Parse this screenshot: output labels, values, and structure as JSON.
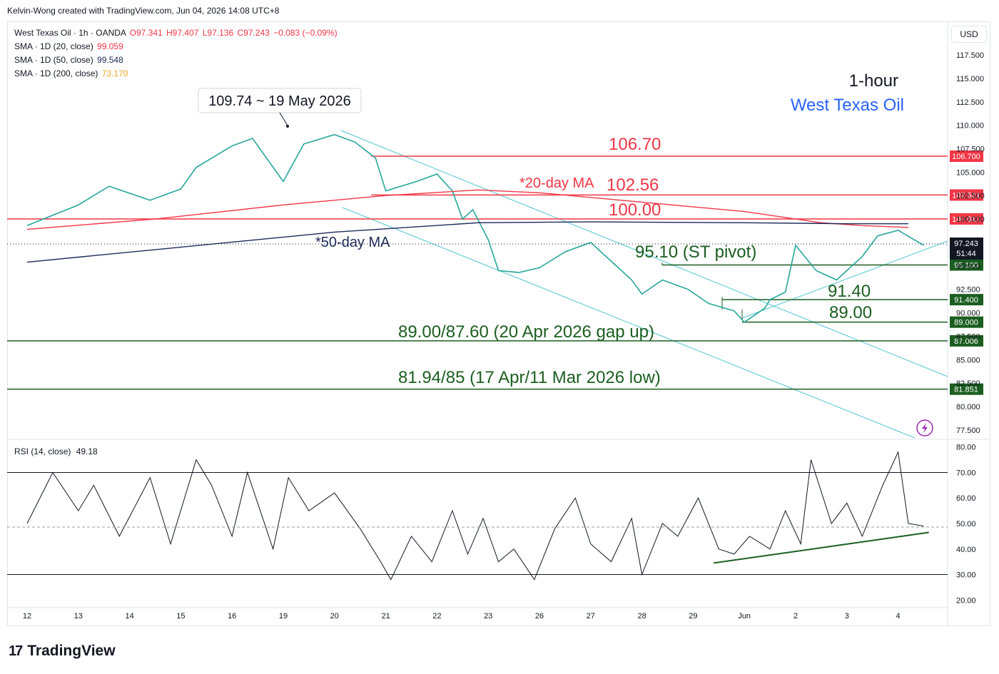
{
  "header": {
    "credit": "Kelvin-Wong created with TradingView.com, Jun 04, 2026 14:08 UTC+8"
  },
  "legend": {
    "symbol": "West Texas Oil · 1h · OANDA",
    "ohlc": {
      "o": "O97.341",
      "h": "H97.407",
      "l": "L97.136",
      "c": "C97.243",
      "chg": "−0.083 (−0.09%)"
    },
    "sma": [
      {
        "label": "SMA · 1D (20, close)",
        "value": "99.059",
        "color": "#f23645"
      },
      {
        "label": "SMA · 1D (50, close)",
        "value": "99.548",
        "color": "#1e2a5a"
      },
      {
        "label": "SMA · 1D (200, close)",
        "value": "73.170",
        "color": "#f5a623"
      }
    ],
    "rsi": {
      "label": "RSI (14, close)",
      "value": "49.18"
    }
  },
  "toolbar": {
    "currency": "USD"
  },
  "chart_data": [
    {
      "type": "line",
      "title": "1-hour",
      "subtitle": "West Texas Oil",
      "subtitle_color": "#2962ff",
      "x_labels": [
        "12",
        "13",
        "14",
        "15",
        "16",
        "19",
        "20",
        "21",
        "22",
        "23",
        "26",
        "27",
        "28",
        "29",
        "Jun",
        "2",
        "3",
        "4"
      ],
      "y_ticks": [
        "117.500",
        "115.000",
        "112.500",
        "110.000",
        "107.500",
        "105.000",
        "102.500",
        "100.000",
        "97.500",
        "95.000",
        "92.500",
        "90.000",
        "87.500",
        "85.000",
        "82.500",
        "80.000",
        "77.500"
      ],
      "ylim": [
        76.5,
        119.1
      ],
      "last_price": {
        "value": "97.243",
        "countdown": "51:44"
      },
      "series": [
        {
          "color": "#26a69a",
          "x": [
            0,
            1,
            1.6,
            2.4,
            3,
            3.3,
            4,
            4.4,
            5,
            5.4,
            6,
            6.4,
            6.8,
            7,
            7.6,
            8,
            8.3,
            8.5,
            8.7,
            9,
            9.2,
            9.6,
            10,
            10.5,
            11,
            11.4,
            11.8,
            12,
            12.4,
            12.9,
            13.3,
            13.8,
            14,
            14.4,
            14.5,
            14.8,
            15,
            15.4,
            15.8,
            16.3,
            16.6,
            17,
            17.5
          ],
          "y": [
            99.3,
            101.5,
            103.5,
            102.0,
            103.2,
            105.5,
            107.8,
            108.6,
            104.0,
            108.0,
            109.0,
            108.2,
            106.5,
            103.0,
            104.0,
            104.8,
            103.0,
            100.0,
            101.0,
            97.8,
            94.5,
            94.3,
            94.8,
            96.5,
            97.5,
            95.5,
            93.5,
            92.0,
            93.5,
            92.5,
            91.0,
            90.2,
            89.0,
            90.5,
            91.4,
            92.2,
            97.2,
            94.5,
            93.5,
            96.0,
            98.2,
            98.8,
            97.2
          ]
        },
        {
          "name": "SMA · 1D (20, close)",
          "color": "#f23645",
          "x": [
            0,
            2.5,
            5,
            7,
            8.8,
            10,
            12,
            14,
            15.5,
            16.3,
            17.2
          ],
          "y": [
            98.9,
            100.0,
            101.5,
            102.5,
            103.1,
            102.8,
            101.8,
            100.8,
            99.6,
            99.3,
            99.1
          ]
        },
        {
          "name": "SMA · 1D (50, close)",
          "color": "#1e2a5a",
          "x": [
            0,
            3,
            6,
            8.8,
            11,
            14,
            16,
            17.2
          ],
          "y": [
            95.4,
            97.0,
            98.6,
            99.6,
            99.7,
            99.6,
            99.5,
            99.5
          ]
        }
      ],
      "levels": [
        {
          "value": 106.7,
          "label": "106.70",
          "axis_label": "106.700",
          "color": "#f23645"
        },
        {
          "value": 102.56,
          "label": "102.56",
          "axis_label": "102.561",
          "color": "#f23645"
        },
        {
          "value": 100.01,
          "label": "100.00",
          "axis_label": "100.010",
          "color": "#f23645"
        },
        {
          "value": 95.1,
          "label": "95.10 (ST pivot)",
          "axis_label": "95.100",
          "color": "#1b5e20"
        },
        {
          "value": 91.4,
          "label": "91.40",
          "axis_label": "91.400",
          "color": "#1b5e20"
        },
        {
          "value": 89.0,
          "label": "89.00",
          "axis_label": "89.000",
          "color": "#1b5e20"
        },
        {
          "value": 87.006,
          "label": "89.00/87.60 (20 Apr 2026 gap up)",
          "axis_label": "87.006",
          "color": "#1b5e20"
        },
        {
          "value": 81.851,
          "label": "81.94/85 (17 Apr/11 Mar 2026 low)",
          "axis_label": "81.851",
          "color": "#1b5e20"
        }
      ],
      "annotations": [
        {
          "text": "109.74 ~ 19 May 2026"
        },
        {
          "text": "*20-day MA",
          "color": "#f23645"
        },
        {
          "text": "*50-day MA",
          "color": "#1e2a5a"
        }
      ]
    },
    {
      "type": "line",
      "title": "RSI (14, close)",
      "y_ticks": [
        "80.00",
        "70.00",
        "60.00",
        "50.00",
        "40.00",
        "30.00",
        "20.00"
      ],
      "ylim": [
        17,
        83
      ],
      "bands": [
        70,
        50,
        30
      ],
      "series": [
        {
          "color": "#131722",
          "x": [
            0,
            0.5,
            1,
            1.3,
            1.8,
            2.4,
            2.8,
            3.3,
            3.6,
            4,
            4.3,
            4.8,
            5.1,
            5.5,
            6,
            6.5,
            6.9,
            7.1,
            7.5,
            7.9,
            8.3,
            8.6,
            8.9,
            9.2,
            9.5,
            9.9,
            10.3,
            10.7,
            11,
            11.4,
            11.8,
            12,
            12.4,
            12.7,
            13.1,
            13.5,
            13.8,
            14.1,
            14.5,
            14.8,
            15.1,
            15.3,
            15.7,
            16,
            16.3,
            16.7,
            17,
            17.2,
            17.5
          ],
          "y": [
            50,
            70,
            55,
            65,
            45,
            68,
            42,
            75,
            65,
            45,
            70,
            40,
            68,
            55,
            62,
            48,
            35,
            28,
            45,
            35,
            55,
            38,
            52,
            35,
            40,
            28,
            48,
            60,
            42,
            35,
            52,
            30,
            50,
            45,
            60,
            40,
            38,
            45,
            40,
            55,
            42,
            75,
            50,
            58,
            45,
            65,
            78,
            50,
            49
          ]
        },
        {
          "color": "#1b5e20",
          "x": [
            13.4,
            17.6
          ],
          "y": [
            34.5,
            46.5
          ]
        }
      ]
    }
  ]
}
